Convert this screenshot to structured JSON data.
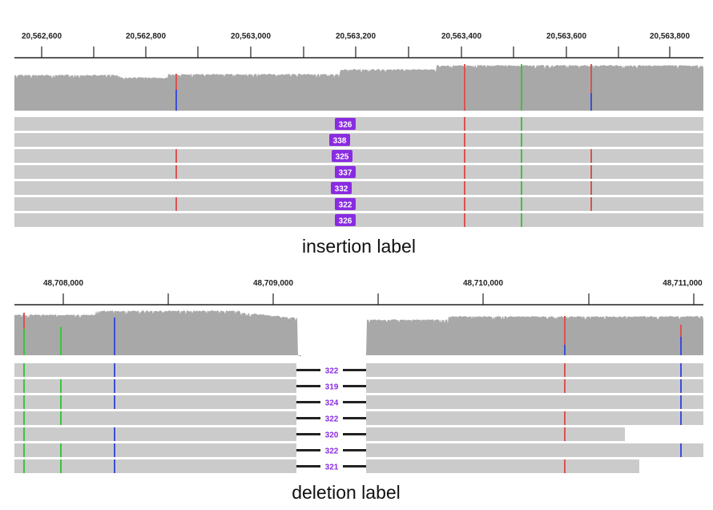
{
  "colors": {
    "coverage": "#a8a8a8",
    "read": "#cbcbcb",
    "mismatch_red": "#d9534f",
    "mismatch_blue": "#3b4fd6",
    "mismatch_green": "#3cc43c",
    "insertion_pill": "#8a2be2",
    "deletion_text": "#8a2be2",
    "deletion_line": "#222222",
    "axis": "#222222"
  },
  "panels": [
    {
      "name": "insertion",
      "ruler_ticks": [
        "20,562,600",
        "20,562,800",
        "20,563,000",
        "20,563,200",
        "20,563,400",
        "20,563,600",
        "20,563,800"
      ],
      "reads": [
        {
          "insert_size": "326"
        },
        {
          "insert_size": "338"
        },
        {
          "insert_size": "325"
        },
        {
          "insert_size": "337"
        },
        {
          "insert_size": "332"
        },
        {
          "insert_size": "322"
        },
        {
          "insert_size": "326"
        }
      ],
      "caption": "insertion label"
    },
    {
      "name": "deletion",
      "ruler_ticks": [
        "48,708,000",
        "48,709,000",
        "48,710,000",
        "48,711,000"
      ],
      "reads": [
        {
          "deletion_size": "322"
        },
        {
          "deletion_size": "319"
        },
        {
          "deletion_size": "324"
        },
        {
          "deletion_size": "322"
        },
        {
          "deletion_size": "320"
        },
        {
          "deletion_size": "322"
        },
        {
          "deletion_size": "321"
        }
      ],
      "caption": "deletion label"
    }
  ]
}
